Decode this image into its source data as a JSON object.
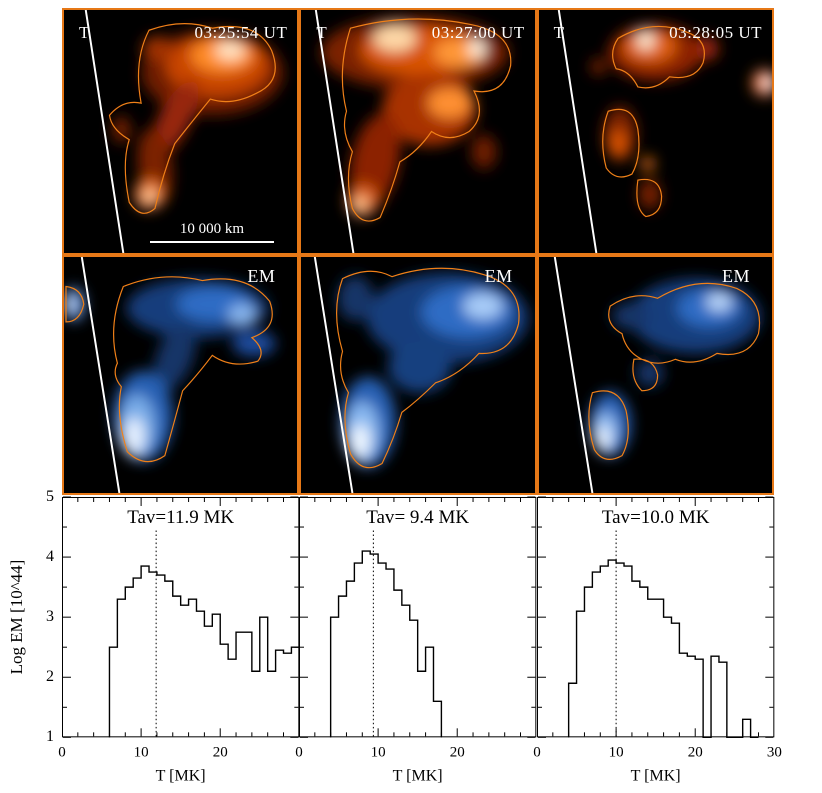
{
  "colors": {
    "panel_border": "#e67817",
    "map_background": "#000000",
    "limb_line": "#ffffff",
    "contour_line": "#f08018",
    "histogram_line": "#000000"
  },
  "t_row": {
    "scalebar_label": "10 000 km",
    "panels": [
      {
        "label": "T",
        "timestamp": "03:25:54 UT"
      },
      {
        "label": "T",
        "timestamp": "03:27:00 UT"
      },
      {
        "label": "T",
        "timestamp": "03:28:05 UT"
      }
    ]
  },
  "em_row": {
    "panels": [
      {
        "label": "EM"
      },
      {
        "label": "EM"
      },
      {
        "label": "EM"
      }
    ]
  },
  "chart_axis": {
    "ylabel": "Log EM [10^44]",
    "ytick_labels": [
      "5",
      "4",
      "3",
      "2",
      "1"
    ]
  },
  "chart_data": [
    {
      "type": "histogram-step",
      "title": "Tav=11.9 MK",
      "tav_mk": 11.9,
      "xlabel": "T [MK]",
      "ylabel": "Log EM [10^44]",
      "xlim": [
        0,
        30
      ],
      "ylim": [
        1,
        5
      ],
      "xticks": [
        0,
        10,
        20,
        30
      ],
      "xtick_labels": [
        "0",
        "10",
        "20",
        ""
      ],
      "yticks": [
        1,
        2,
        3,
        4,
        5
      ],
      "bin_width_mk": 1,
      "bin_start_mk": 6,
      "log_em_values": [
        2.5,
        3.3,
        3.5,
        3.65,
        3.85,
        3.75,
        3.7,
        3.6,
        3.35,
        3.2,
        3.3,
        3.1,
        2.85,
        3.05,
        2.55,
        2.3,
        2.75,
        2.75,
        2.1,
        3.0,
        2.1,
        2.45,
        2.4,
        2.5
      ]
    },
    {
      "type": "histogram-step",
      "title": "Tav= 9.4 MK",
      "tav_mk": 9.4,
      "xlabel": "T [MK]",
      "ylabel": "Log EM [10^44]",
      "xlim": [
        0,
        30
      ],
      "ylim": [
        1,
        5
      ],
      "xticks": [
        0,
        10,
        20,
        30
      ],
      "xtick_labels": [
        "0",
        "10",
        "20",
        ""
      ],
      "yticks": [
        1,
        2,
        3,
        4,
        5
      ],
      "bin_width_mk": 1,
      "bin_start_mk": 4,
      "log_em_values": [
        3.0,
        3.35,
        3.6,
        3.9,
        4.1,
        4.05,
        3.9,
        3.8,
        3.45,
        3.2,
        2.95,
        2.1,
        2.5,
        1.6
      ]
    },
    {
      "type": "histogram-step",
      "title": "Tav=10.0 MK",
      "tav_mk": 10.0,
      "xlabel": "T [MK]",
      "ylabel": "Log EM [10^44]",
      "xlim": [
        0,
        30
      ],
      "ylim": [
        1,
        5
      ],
      "xticks": [
        0,
        10,
        20,
        30
      ],
      "xtick_labels": [
        "0",
        "10",
        "20",
        "30"
      ],
      "yticks": [
        1,
        2,
        3,
        4,
        5
      ],
      "bin_width_mk": 1,
      "bin_start_mk": 4,
      "log_em_values": [
        1.9,
        3.1,
        3.5,
        3.75,
        3.85,
        3.95,
        3.9,
        3.85,
        3.6,
        3.5,
        3.3,
        3.3,
        3.0,
        2.9,
        2.4,
        2.35,
        2.3,
        1.0,
        2.35,
        2.25,
        1.0,
        1.0,
        1.3,
        1.0
      ]
    }
  ]
}
